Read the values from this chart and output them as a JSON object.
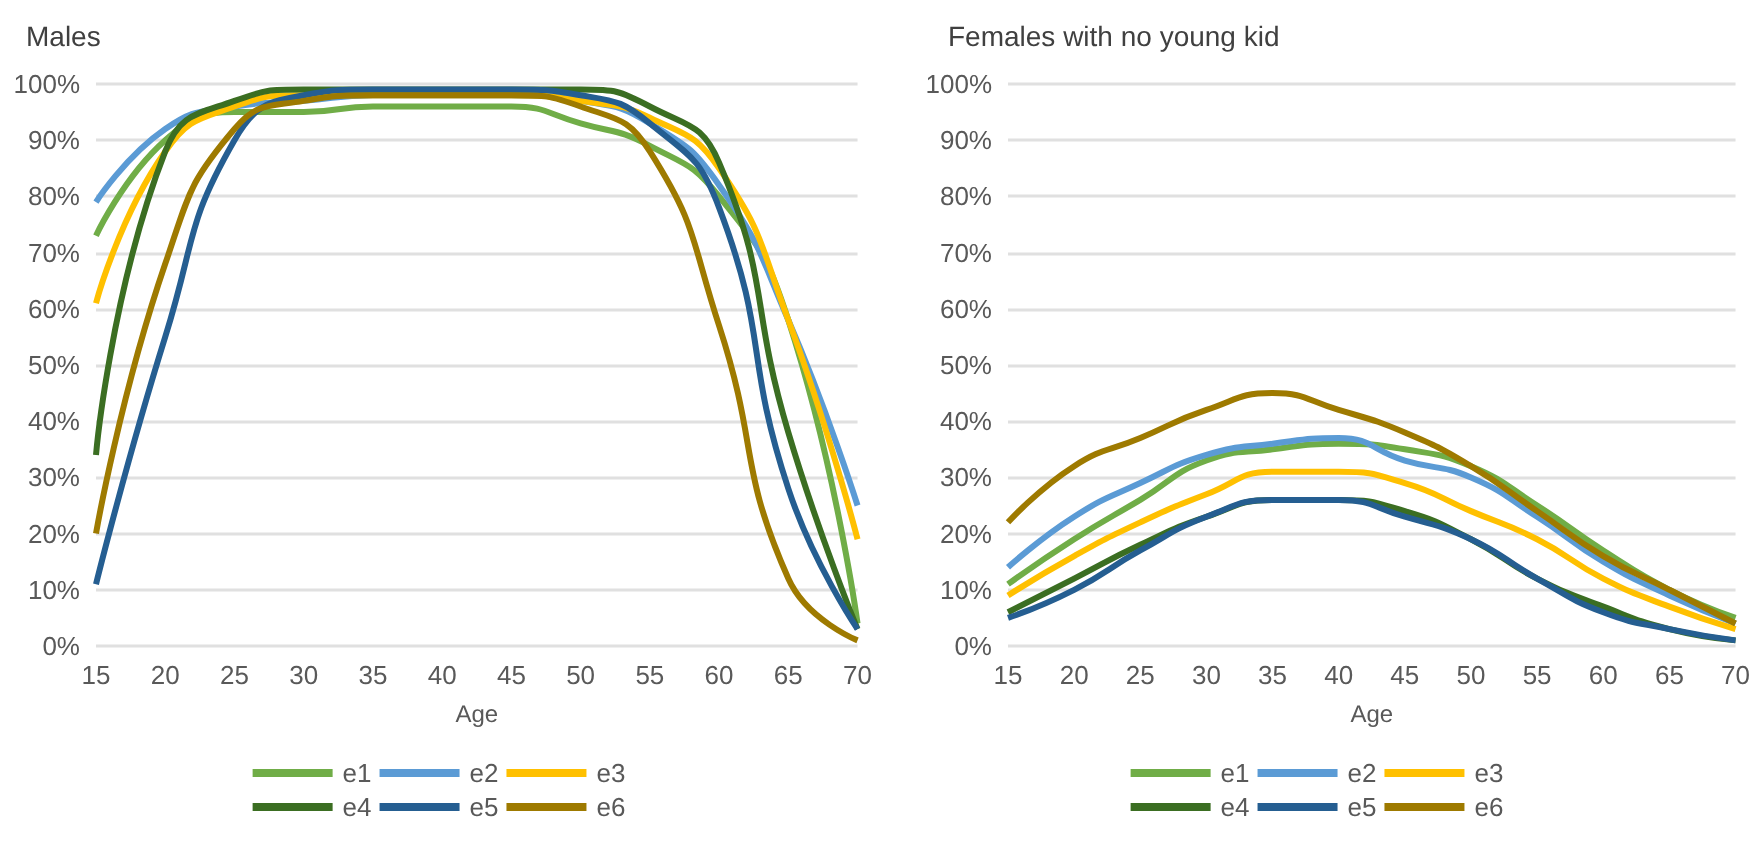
{
  "chart_data": [
    {
      "type": "line",
      "title": "Males",
      "xlabel": "Age",
      "categories": [
        "15",
        "20",
        "25",
        "30",
        "35",
        "40",
        "45",
        "50",
        "55",
        "60",
        "65",
        "70"
      ],
      "series": [
        {
          "name": "e1",
          "color": "#70ad47",
          "values": [
            73,
            90,
            95,
            95,
            96,
            96,
            96,
            93,
            89,
            80,
            58,
            4
          ]
        },
        {
          "name": "e2",
          "color": "#5b9bd5",
          "values": [
            79,
            92,
            96,
            97,
            98,
            98,
            98,
            97,
            93,
            82,
            58,
            25
          ]
        },
        {
          "name": "e3",
          "color": "#ffc000",
          "values": [
            61,
            88,
            96,
            98,
            98,
            98,
            98,
            97,
            94,
            85,
            58,
            19
          ]
        },
        {
          "name": "e4",
          "color": "#3b6e22",
          "values": [
            34,
            88,
            97,
            99,
            99,
            99,
            99,
            99,
            96,
            86,
            38,
            3
          ]
        },
        {
          "name": "e5",
          "color": "#255e91",
          "values": [
            11,
            55,
            90,
            98,
            99,
            99,
            99,
            98,
            93,
            78,
            28,
            3
          ]
        },
        {
          "name": "e6",
          "color": "#9e7a00",
          "values": [
            20,
            68,
            92,
            97,
            98,
            98,
            98,
            96,
            88,
            57,
            12,
            1
          ]
        }
      ],
      "ylim": [
        0,
        100
      ],
      "yticks": [
        {
          "value": 0,
          "label": "0%"
        },
        {
          "value": 10,
          "label": "10%"
        },
        {
          "value": 20,
          "label": "20%"
        },
        {
          "value": 30,
          "label": "30%"
        },
        {
          "value": 40,
          "label": "40%"
        },
        {
          "value": 50,
          "label": "50%"
        },
        {
          "value": 60,
          "label": "60%"
        },
        {
          "value": 70,
          "label": "70%"
        },
        {
          "value": 80,
          "label": "80%"
        },
        {
          "value": 90,
          "label": "90%"
        },
        {
          "value": 100,
          "label": "100%"
        }
      ],
      "grid": "y",
      "legend": "bottom",
      "marker": "none"
    },
    {
      "type": "line",
      "title": "Females with no young kid",
      "xlabel": "Age",
      "categories": [
        "15",
        "20",
        "25",
        "30",
        "35",
        "40",
        "45",
        "50",
        "55",
        "60",
        "65",
        "70"
      ],
      "series": [
        {
          "name": "e1",
          "color": "#70ad47",
          "values": [
            11,
            19,
            26,
            33,
            35,
            36,
            35,
            32,
            25,
            17,
            10,
            5
          ]
        },
        {
          "name": "e2",
          "color": "#5b9bd5",
          "values": [
            14,
            23,
            29,
            34,
            36,
            37,
            33,
            30,
            23,
            15,
            9,
            4
          ]
        },
        {
          "name": "e3",
          "color": "#ffc000",
          "values": [
            9,
            16,
            22,
            27,
            31,
            31,
            29,
            24,
            19,
            12,
            7,
            3
          ]
        },
        {
          "name": "e4",
          "color": "#3b6e22",
          "values": [
            6,
            12,
            18,
            23,
            26,
            26,
            24,
            19,
            12,
            7,
            3,
            1
          ]
        },
        {
          "name": "e5",
          "color": "#255e91",
          "values": [
            5,
            10,
            17,
            23,
            26,
            26,
            23,
            19,
            12,
            6,
            3,
            1
          ]
        },
        {
          "name": "e6",
          "color": "#9e7a00",
          "values": [
            22,
            32,
            37,
            42,
            45,
            42,
            38,
            32,
            24,
            16,
            10,
            4
          ]
        }
      ],
      "ylim": [
        0,
        100
      ],
      "yticks": [
        {
          "value": 0,
          "label": "0%"
        },
        {
          "value": 10,
          "label": "10%"
        },
        {
          "value": 20,
          "label": "20%"
        },
        {
          "value": 30,
          "label": "30%"
        },
        {
          "value": 40,
          "label": "40%"
        },
        {
          "value": 50,
          "label": "50%"
        },
        {
          "value": 60,
          "label": "60%"
        },
        {
          "value": 70,
          "label": "70%"
        },
        {
          "value": 80,
          "label": "80%"
        },
        {
          "value": 90,
          "label": "90%"
        },
        {
          "value": 100,
          "label": "100%"
        }
      ],
      "grid": "y",
      "legend": "bottom",
      "marker": "none"
    }
  ]
}
